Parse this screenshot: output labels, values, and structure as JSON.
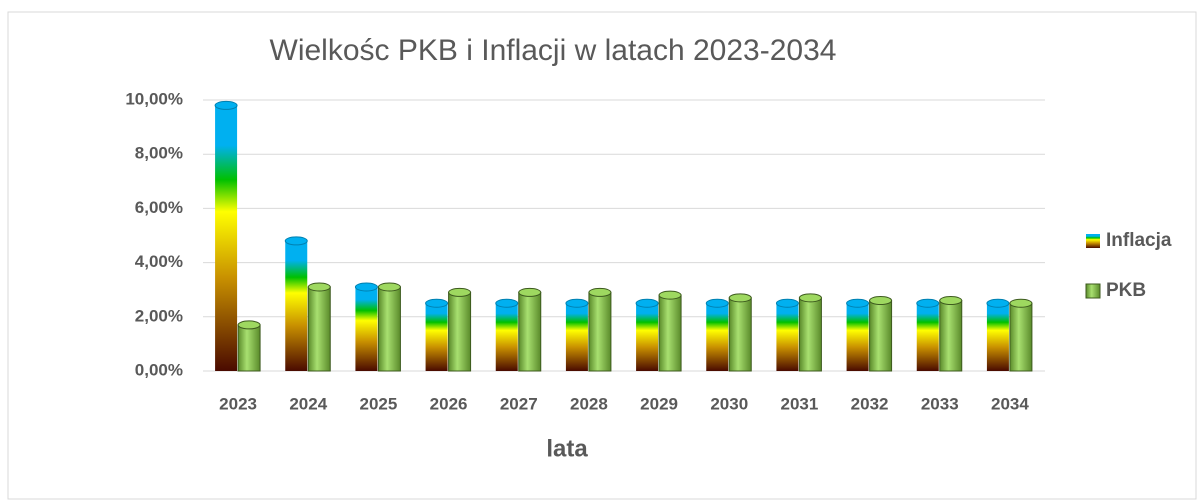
{
  "chart_data": {
    "type": "bar",
    "title": "Wielkośc PKB i Inflacji w latach 2023-2034",
    "x_label": "lata",
    "categories": [
      "2023",
      "2024",
      "2025",
      "2026",
      "2027",
      "2028",
      "2029",
      "2030",
      "2031",
      "2032",
      "2033",
      "2034"
    ],
    "series": [
      {
        "name": "Inflacja",
        "color": "#00b0f0",
        "values": [
          9.8,
          4.8,
          3.1,
          2.5,
          2.5,
          2.5,
          2.5,
          2.5,
          2.5,
          2.5,
          2.5,
          2.5
        ]
      },
      {
        "name": "PKB",
        "color": "#92d050",
        "values": [
          1.7,
          3.1,
          3.1,
          2.9,
          2.9,
          2.9,
          2.8,
          2.7,
          2.7,
          2.6,
          2.6,
          2.5
        ]
      }
    ],
    "ylim": [
      0,
      10
    ],
    "yticks": [
      {
        "value": 0,
        "label": "0,00%"
      },
      {
        "value": 2,
        "label": "2,00%"
      },
      {
        "value": 4,
        "label": "4,00%"
      },
      {
        "value": 6,
        "label": "6,00%"
      },
      {
        "value": 8,
        "label": "8,00%"
      },
      {
        "value": 10,
        "label": "10,00%"
      }
    ],
    "grid": true,
    "legend": "right"
  }
}
